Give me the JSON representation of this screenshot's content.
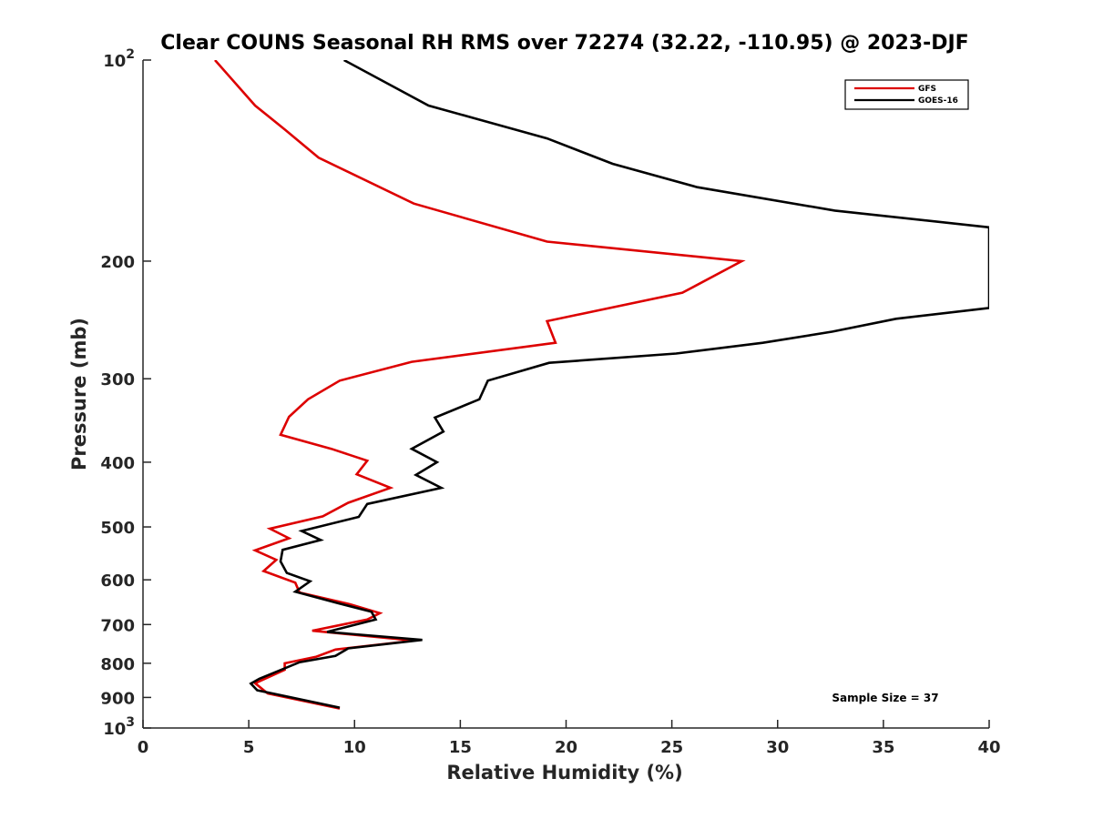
{
  "chart_data": {
    "type": "line",
    "title": "Clear COUNS Seasonal RH RMS over 72274 (32.22, -110.95) @ 2023-DJF",
    "xlabel": "Relative Humidity (%)",
    "ylabel": "Pressure (mb)",
    "xlim": [
      0,
      40
    ],
    "ylim": [
      100,
      1000
    ],
    "yscale": "log",
    "yreversed": true,
    "xticks": [
      0,
      5,
      10,
      15,
      20,
      25,
      30,
      35,
      40
    ],
    "xtick_labels": [
      "0",
      "5",
      "10",
      "15",
      "20",
      "25",
      "30",
      "35",
      "40"
    ],
    "yticks": [
      100,
      200,
      300,
      400,
      500,
      600,
      700,
      800,
      900,
      1000
    ],
    "ytick_labels": [
      {
        "base": "10",
        "exp": "2"
      },
      {
        "base": "200",
        "exp": ""
      },
      {
        "base": "300",
        "exp": ""
      },
      {
        "base": "400",
        "exp": ""
      },
      {
        "base": "500",
        "exp": ""
      },
      {
        "base": "600",
        "exp": ""
      },
      {
        "base": "700",
        "exp": ""
      },
      {
        "base": "800",
        "exp": ""
      },
      {
        "base": "900",
        "exp": ""
      },
      {
        "base": "10",
        "exp": "3"
      }
    ],
    "legend_position": "top-right",
    "annotation": "Sample Size = 37",
    "series": [
      {
        "name": "GFS",
        "color": "#dd0000",
        "points": [
          [
            3.4,
            100
          ],
          [
            5.3,
            117
          ],
          [
            6.7,
            127
          ],
          [
            8.3,
            140
          ],
          [
            12.8,
            164
          ],
          [
            19.1,
            187
          ],
          [
            28.3,
            200
          ],
          [
            25.5,
            223
          ],
          [
            19.1,
            246
          ],
          [
            19.5,
            265
          ],
          [
            12.7,
            283
          ],
          [
            9.3,
            302
          ],
          [
            7.8,
            322
          ],
          [
            6.9,
            342
          ],
          [
            6.5,
            364
          ],
          [
            8.9,
            382
          ],
          [
            10.6,
            398
          ],
          [
            10.1,
            417
          ],
          [
            11.7,
            437
          ],
          [
            9.7,
            460
          ],
          [
            8.5,
            482
          ],
          [
            6.0,
            503
          ],
          [
            6.9,
            520
          ],
          [
            5.3,
            542
          ],
          [
            6.3,
            560
          ],
          [
            5.7,
            582
          ],
          [
            7.2,
            606
          ],
          [
            7.4,
            627
          ],
          [
            9.8,
            653
          ],
          [
            11.2,
            673
          ],
          [
            10.6,
            688
          ],
          [
            8.0,
            715
          ],
          [
            12.8,
            740
          ],
          [
            9.1,
            763
          ],
          [
            8.2,
            782
          ],
          [
            6.7,
            800
          ],
          [
            6.7,
            818
          ],
          [
            5.3,
            857
          ],
          [
            5.9,
            888
          ],
          [
            9.3,
            935
          ]
        ]
      },
      {
        "name": "GOES-16",
        "color": "#000000",
        "points": [
          [
            9.5,
            100
          ],
          [
            13.5,
            117
          ],
          [
            19.1,
            131
          ],
          [
            22.2,
            143
          ],
          [
            26.2,
            155
          ],
          [
            32.7,
            168
          ],
          [
            40,
            178
          ],
          [
            40,
            235
          ],
          [
            35.6,
            244
          ],
          [
            32.6,
            255
          ],
          [
            29.3,
            265
          ],
          [
            25.2,
            275
          ],
          [
            19.2,
            284
          ],
          [
            16.3,
            302
          ],
          [
            15.9,
            322
          ],
          [
            13.8,
            343
          ],
          [
            14.2,
            360
          ],
          [
            12.7,
            382
          ],
          [
            13.9,
            400
          ],
          [
            12.9,
            418
          ],
          [
            14.1,
            437
          ],
          [
            10.6,
            462
          ],
          [
            10.2,
            483
          ],
          [
            7.5,
            507
          ],
          [
            8.4,
            523
          ],
          [
            6.6,
            541
          ],
          [
            6.5,
            563
          ],
          [
            6.8,
            586
          ],
          [
            7.9,
            603
          ],
          [
            7.2,
            625
          ],
          [
            9.2,
            650
          ],
          [
            10.8,
            670
          ],
          [
            11.0,
            688
          ],
          [
            8.7,
            718
          ],
          [
            13.2,
            738
          ],
          [
            9.7,
            760
          ],
          [
            9.1,
            780
          ],
          [
            7.4,
            797
          ],
          [
            5.5,
            844
          ],
          [
            5.1,
            858
          ],
          [
            5.4,
            878
          ],
          [
            9.3,
            932
          ]
        ]
      }
    ]
  }
}
